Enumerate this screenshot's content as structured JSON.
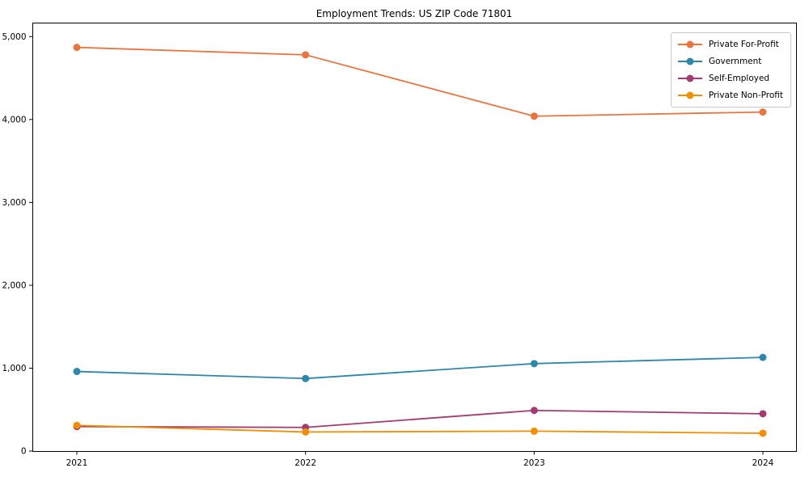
{
  "figure": {
    "title": "Employment Trends: US ZIP Code 71801"
  },
  "chart_data": {
    "type": "line",
    "title": "Employment Trends: US ZIP Code 71801",
    "xlabel": "",
    "ylabel": "",
    "x": [
      "2021",
      "2022",
      "2023",
      "2024"
    ],
    "series": [
      {
        "name": "Private For-Profit",
        "color": "#E8743F",
        "values": [
          4870,
          4780,
          4040,
          4090
        ]
      },
      {
        "name": "Government",
        "color": "#2E86AB",
        "values": [
          960,
          875,
          1055,
          1130
        ]
      },
      {
        "name": "Self-Employed",
        "color": "#A23B72",
        "values": [
          295,
          285,
          490,
          450
        ]
      },
      {
        "name": "Private Non-Profit",
        "color": "#F18F01",
        "values": [
          310,
          230,
          240,
          215
        ]
      }
    ],
    "ylim": [
      0,
      5000
    ],
    "yticks": [
      {
        "value": 0,
        "label": "0"
      },
      {
        "value": 1000,
        "label": "1,000"
      },
      {
        "value": 2000,
        "label": "2,000"
      },
      {
        "value": 3000,
        "label": "3,000"
      },
      {
        "value": 4000,
        "label": "4,000"
      },
      {
        "value": 5000,
        "label": "5,000"
      }
    ],
    "grid": false,
    "legend_position": "upper right",
    "marker": "circle",
    "axis_color": "#000000"
  }
}
